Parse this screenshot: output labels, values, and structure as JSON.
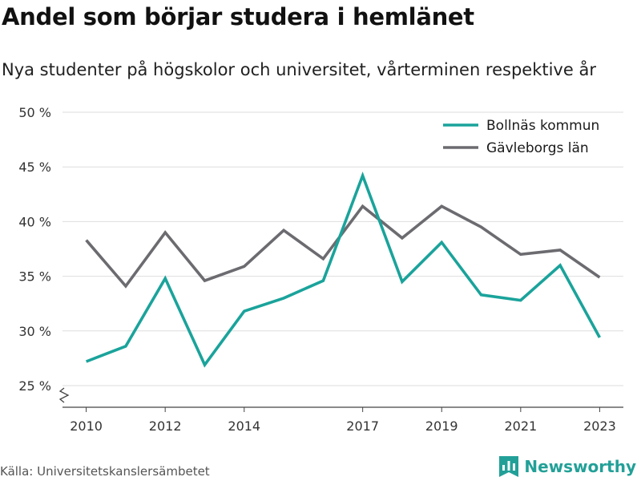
{
  "title": "Andel som börjar studera i hemlänet",
  "subtitle": "Nya studenter på högskolor och universitet, vårterminen respektive år",
  "source": "Källa: Universitetskanslersämbetet",
  "brand": {
    "name": "Newsworthy",
    "icon": "newsworthy-logo-icon"
  },
  "colors": {
    "bollnas": "#1aa39b",
    "gavleborg": "#6b6b70",
    "grid": "#dedede",
    "axis": "#444444",
    "brand": "#22a098"
  },
  "chart_data": {
    "type": "line",
    "x": [
      2010,
      2011,
      2012,
      2013,
      2014,
      2015,
      2016,
      2017,
      2018,
      2019,
      2020,
      2021,
      2022,
      2023
    ],
    "xticks": [
      2010,
      2012,
      2014,
      2017,
      2019,
      2021,
      2023
    ],
    "xlim": [
      2009.4,
      2023.6
    ],
    "ylim": [
      23,
      50
    ],
    "yticks": [
      25,
      30,
      35,
      40,
      45,
      50
    ],
    "ytick_labels": [
      "25 %",
      "30 %",
      "35 %",
      "40 %",
      "45 %",
      "50 %"
    ],
    "y_axis_break": true,
    "grid": "horizontal",
    "legend_position": "top-right",
    "series": [
      {
        "name": "Bollnäs kommun",
        "color": "#1aa39b",
        "values": [
          27.2,
          28.6,
          34.8,
          26.9,
          31.8,
          33.0,
          34.6,
          44.2,
          34.5,
          38.1,
          33.3,
          32.8,
          36.0,
          29.4
        ]
      },
      {
        "name": "Gävleborgs län",
        "color": "#6b6b70",
        "values": [
          38.3,
          34.1,
          39.0,
          34.6,
          35.9,
          39.2,
          36.6,
          41.4,
          38.5,
          41.4,
          39.5,
          37.0,
          37.4,
          34.9
        ]
      }
    ]
  }
}
